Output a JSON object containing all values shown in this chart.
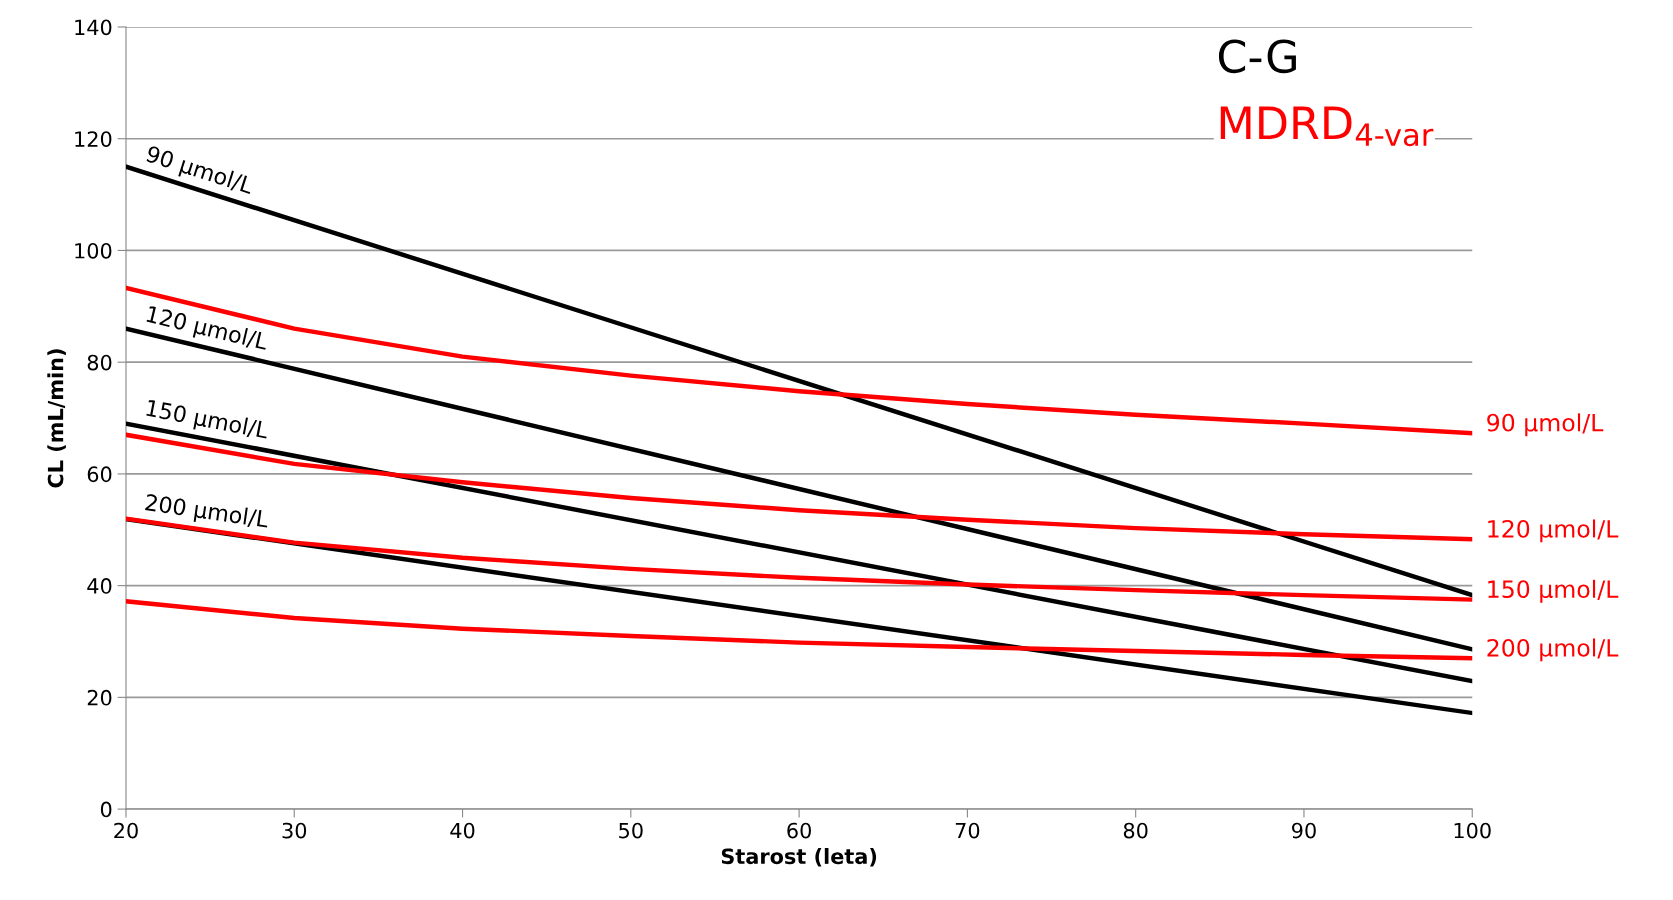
{
  "chart_data": {
    "type": "line",
    "xlabel": "Starost (leta)",
    "ylabel": "CL (mL/min)",
    "annotations": [
      "C-G",
      "MDRD$_{4-var}$"
    ],
    "xlim": [
      20,
      100
    ],
    "xticks": [
      20,
      30,
      40,
      50,
      60,
      70,
      80,
      90,
      100
    ],
    "ylim": [
      0,
      140
    ],
    "yticks": [
      0,
      20,
      40,
      60,
      80,
      100,
      120,
      140
    ],
    "grid": "y",
    "legend": false,
    "marker": "none",
    "line_style": "solid",
    "series": [
      {
        "name": "90 μmol/L",
        "color": "#000000",
        "x": [
          20,
          100
        ],
        "values": [
          115,
          38.3
        ]
      },
      {
        "name": "120 μmol/L",
        "color": "#000000",
        "x": [
          20,
          100
        ],
        "values": [
          86,
          28.6
        ]
      },
      {
        "name": "150 μmol/L",
        "color": "#000000",
        "x": [
          20,
          100
        ],
        "values": [
          69,
          22.9
        ]
      },
      {
        "name": "200 μmol/L",
        "color": "#000000",
        "x": [
          20,
          100
        ],
        "values": [
          51.9,
          17.2
        ]
      },
      {
        "name": "90 μmol/L",
        "color": "#ff0000",
        "x": [
          20,
          30,
          40,
          50,
          60,
          70,
          80,
          90,
          100
        ],
        "values": [
          93.3,
          86,
          81,
          77.6,
          74.8,
          72.5,
          70.6,
          69,
          67.3
        ]
      },
      {
        "name": "120 μmol/L",
        "color": "#ff0000",
        "x": [
          20,
          30,
          40,
          50,
          60,
          70,
          80,
          90,
          100
        ],
        "values": [
          67,
          61.8,
          58.5,
          55.7,
          53.5,
          51.8,
          50.3,
          49.2,
          48.3
        ]
      },
      {
        "name": "150 μmol/L",
        "color": "#ff0000",
        "x": [
          20,
          30,
          40,
          50,
          60,
          70,
          80,
          90,
          100
        ],
        "values": [
          52,
          47.7,
          45,
          43,
          41.4,
          40.2,
          39.2,
          38.3,
          37.5
        ]
      },
      {
        "name": "200 μmol/L",
        "color": "#ff0000",
        "x": [
          20,
          30,
          40,
          50,
          60,
          70,
          80,
          90,
          100
        ],
        "values": [
          37.2,
          34.2,
          32.3,
          31,
          29.8,
          29,
          28.3,
          27.6,
          27
        ]
      }
    ]
  }
}
